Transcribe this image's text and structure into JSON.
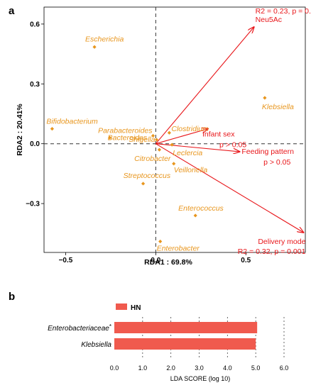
{
  "panels": {
    "a_label": "a",
    "b_label": "b"
  },
  "colors": {
    "species": "#E8961E",
    "arrow": "#E8161A",
    "bar": "#F05A4E",
    "axis": "#000000"
  },
  "chart_data": [
    {
      "type": "scatter",
      "panel": "a",
      "xlabel": "RDA1 : 69.8%",
      "ylabel": "RDA2 : 20.41%",
      "xlim": [
        -0.62,
        0.83
      ],
      "ylim": [
        -0.545,
        0.685
      ],
      "x_ticks": [
        -0.5,
        0.0,
        0.5
      ],
      "y_ticks": [
        -0.3,
        0.0,
        0.3,
        0.6
      ],
      "x_tick_labels": [
        "−0.5",
        "0.0",
        "0.5"
      ],
      "y_tick_labels": [
        "−0.3",
        "0.0",
        "0.3",
        "0.6"
      ],
      "reference_lines": {
        "x": 0,
        "y": 0,
        "style": "dashed"
      },
      "points": [
        {
          "label": "Escherichia",
          "x": -0.34,
          "y": 0.485
        },
        {
          "label": "Klebsiella",
          "x": 0.605,
          "y": 0.23
        },
        {
          "label": "Bifidobacterium",
          "x": -0.575,
          "y": 0.075
        },
        {
          "label": "Clostridium",
          "x": 0.075,
          "y": 0.055
        },
        {
          "label": "Parabacteroides",
          "x": -0.015,
          "y": 0.04
        },
        {
          "label": "Bacteroides",
          "x": -0.255,
          "y": 0.03
        },
        {
          "label": "Shigella",
          "x": 0.005,
          "y": 0.02
        },
        {
          "label": "Leclercia",
          "x": 0.09,
          "y": -0.005
        },
        {
          "label": "Citrobacter",
          "x": 0.02,
          "y": -0.03
        },
        {
          "label": "Veillonella",
          "x": 0.1,
          "y": -0.1
        },
        {
          "label": "Streptococcus",
          "x": -0.07,
          "y": -0.2
        },
        {
          "label": "Enterococcus",
          "x": 0.22,
          "y": -0.36
        },
        {
          "label": "Enterobacter",
          "x": 0.025,
          "y": -0.49
        }
      ],
      "vectors": [
        {
          "name": "Neu5Ac",
          "x": 0.545,
          "y": 0.585,
          "annotation": "R2 = 0.23, p = 0.001"
        },
        {
          "name": "Infant sex",
          "x": 0.29,
          "y": 0.075,
          "annotation": "p > 0.05"
        },
        {
          "name": "Feeding pattern",
          "x": 0.465,
          "y": -0.04,
          "annotation": "p > 0.05"
        },
        {
          "name": "Delivery mode",
          "x": 0.82,
          "y": -0.445,
          "annotation": "R2 = 0.32, p = 0.001"
        }
      ]
    },
    {
      "type": "bar",
      "panel": "b",
      "orientation": "horizontal",
      "xlabel": "LDA  SCORE (log 10)",
      "xlim": [
        0,
        6.0
      ],
      "x_ticks": [
        0.0,
        1.0,
        2.0,
        3.0,
        4.0,
        5.0,
        6.0
      ],
      "x_tick_labels": [
        "0.0",
        "1.0",
        "2.0",
        "3.0",
        "4.0",
        "5.0",
        "6.0"
      ],
      "categories": [
        "Enterobacteriaceae",
        "Klebsiella"
      ],
      "category_marks": [
        "*",
        ""
      ],
      "values": [
        5.05,
        5.0
      ],
      "legend": {
        "label": "HN",
        "placement": "top-left"
      }
    }
  ]
}
